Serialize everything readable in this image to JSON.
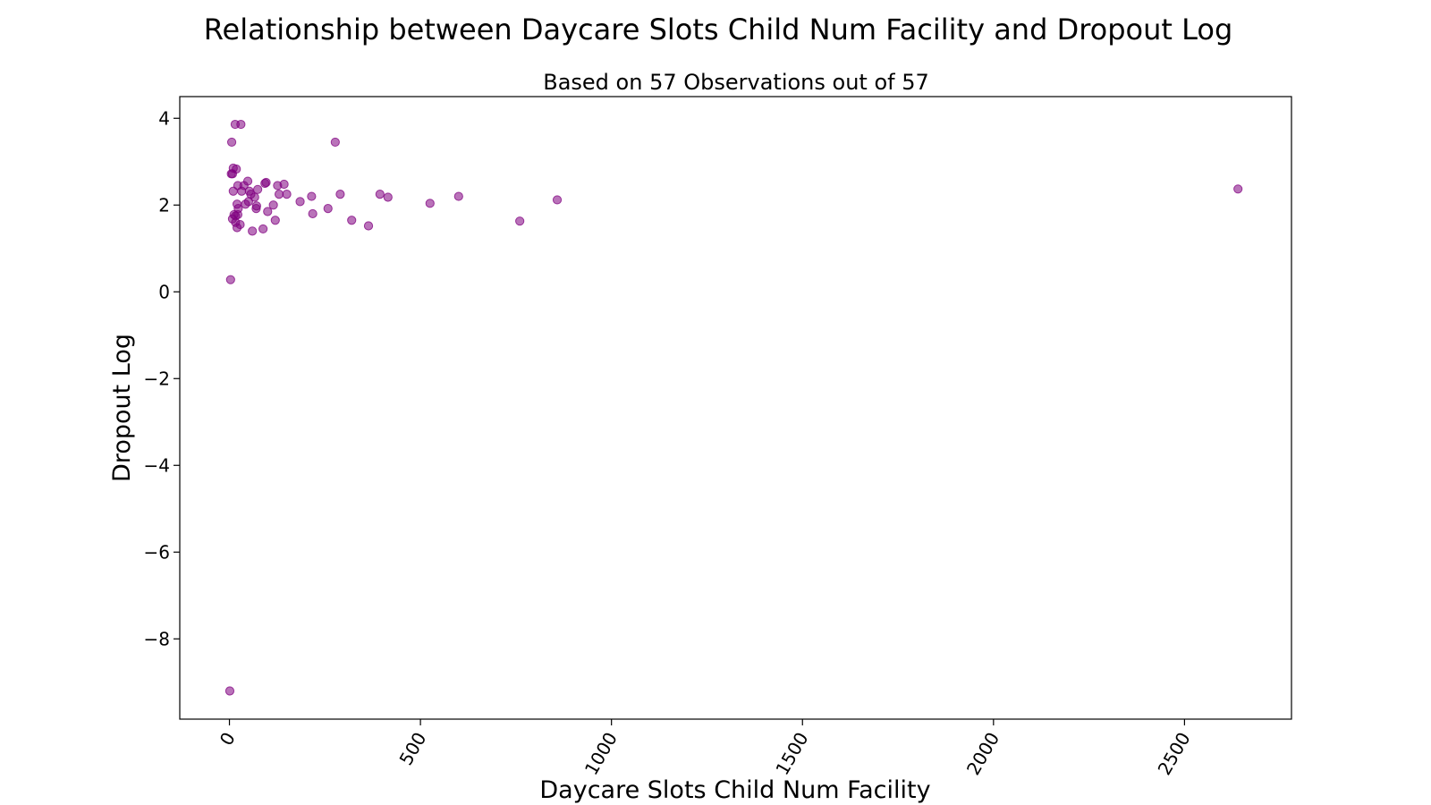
{
  "chart_data": {
    "type": "scatter",
    "title": "Relationship between Daycare Slots Child Num Facility and Dropout Log",
    "subtitle": "Based on 57 Observations out of 57",
    "xlabel": "Daycare Slots Child Num Facility",
    "ylabel": "Dropout Log",
    "xlim": [
      -130,
      2780
    ],
    "ylim": [
      -9.85,
      4.5
    ],
    "xticks": [
      0,
      500,
      1000,
      1500,
      2000,
      2500
    ],
    "yticks": [
      4,
      2,
      0,
      -2,
      -4,
      -6,
      -8
    ],
    "grid": false,
    "legend": "none",
    "color": "#800080",
    "points": [
      [
        1,
        -9.2
      ],
      [
        3,
        0.28
      ],
      [
        5,
        2.72
      ],
      [
        8,
        2.72
      ],
      [
        6,
        3.45
      ],
      [
        8,
        1.68
      ],
      [
        10,
        2.32
      ],
      [
        10,
        2.85
      ],
      [
        12,
        1.78
      ],
      [
        15,
        3.86
      ],
      [
        16,
        1.75
      ],
      [
        16,
        1.6
      ],
      [
        18,
        2.83
      ],
      [
        20,
        1.48
      ],
      [
        20,
        2.02
      ],
      [
        22,
        1.78
      ],
      [
        22,
        2.45
      ],
      [
        23,
        1.92
      ],
      [
        28,
        1.55
      ],
      [
        30,
        3.86
      ],
      [
        32,
        2.32
      ],
      [
        38,
        2.45
      ],
      [
        42,
        2.02
      ],
      [
        48,
        2.55
      ],
      [
        50,
        2.08
      ],
      [
        52,
        2.32
      ],
      [
        56,
        2.25
      ],
      [
        60,
        1.4
      ],
      [
        66,
        2.18
      ],
      [
        70,
        1.92
      ],
      [
        71,
        1.98
      ],
      [
        74,
        2.36
      ],
      [
        88,
        1.45
      ],
      [
        93,
        2.5
      ],
      [
        96,
        2.52
      ],
      [
        100,
        1.85
      ],
      [
        115,
        2.0
      ],
      [
        120,
        1.65
      ],
      [
        126,
        2.45
      ],
      [
        130,
        2.25
      ],
      [
        143,
        2.48
      ],
      [
        150,
        2.25
      ],
      [
        185,
        2.08
      ],
      [
        215,
        2.2
      ],
      [
        218,
        1.8
      ],
      [
        258,
        1.92
      ],
      [
        277,
        3.45
      ],
      [
        290,
        2.25
      ],
      [
        320,
        1.65
      ],
      [
        364,
        1.52
      ],
      [
        394,
        2.25
      ],
      [
        415,
        2.18
      ],
      [
        525,
        2.04
      ],
      [
        600,
        2.2
      ],
      [
        760,
        1.63
      ],
      [
        858,
        2.12
      ],
      [
        2640,
        2.37
      ]
    ]
  }
}
